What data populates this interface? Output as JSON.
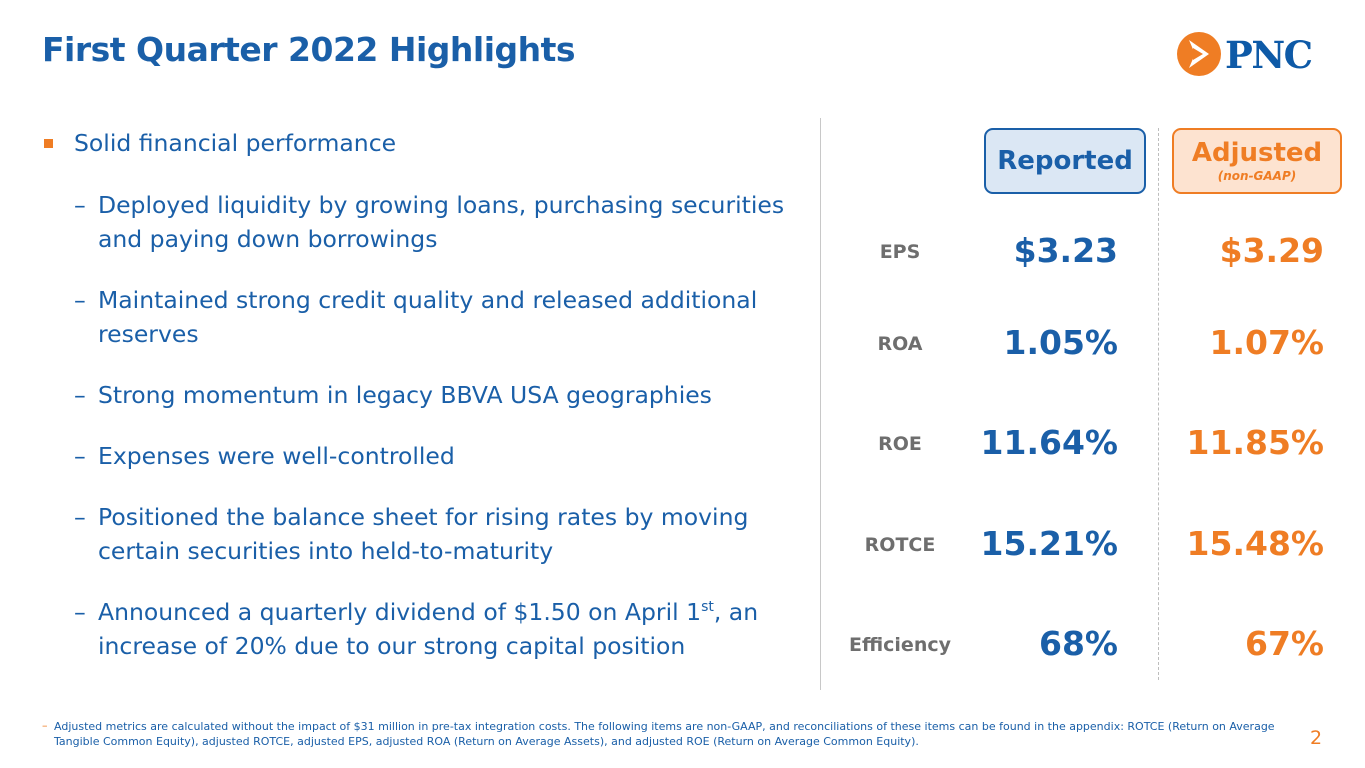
{
  "title": "First Quarter 2022 Highlights",
  "logo": {
    "text": "PNC",
    "accent": "#ef7d24",
    "brand": "#0e5aa7"
  },
  "main_bullet": "Solid financial performance",
  "dash": "–",
  "sub_bullets": [
    "Deployed liquidity by growing loans, purchasing securities and paying down borrowings",
    "Maintained strong credit quality and released additional reserves",
    "Strong momentum in legacy BBVA USA geographies",
    "Expenses were well-controlled",
    "Positioned the balance sheet for rising rates by moving certain securities into held-to-maturity"
  ],
  "dividend_bullet": {
    "before": "Announced a quarterly dividend of $1.50 on April 1",
    "sup": "st",
    "after": ", an increase of 20% due to our strong capital position"
  },
  "headers": {
    "reported": "Reported",
    "adjusted": "Adjusted",
    "adjusted_note": "(non-GAAP)"
  },
  "metrics": [
    {
      "label": "EPS",
      "reported": "$3.23",
      "adjusted": "$3.29"
    },
    {
      "label": "ROA",
      "reported": "1.05%",
      "adjusted": "1.07%"
    },
    {
      "label": "ROE",
      "reported": "11.64%",
      "adjusted": "11.85%"
    },
    {
      "label": "ROTCE",
      "reported": "15.21%",
      "adjusted": "15.48%"
    },
    {
      "label": "Efficiency",
      "reported": "68%",
      "adjusted": "67%"
    }
  ],
  "footnote": "Adjusted metrics are calculated without the impact of $31 million in pre-tax integration costs. The following items are non-GAAP, and reconciliations of these items can be found in the appendix: ROTCE (Return on Average Tangible Common Equity), adjusted ROTCE, adjusted EPS, adjusted ROA (Return on Average Assets), and adjusted ROE (Return on Average Common Equity).",
  "page_number": "2"
}
